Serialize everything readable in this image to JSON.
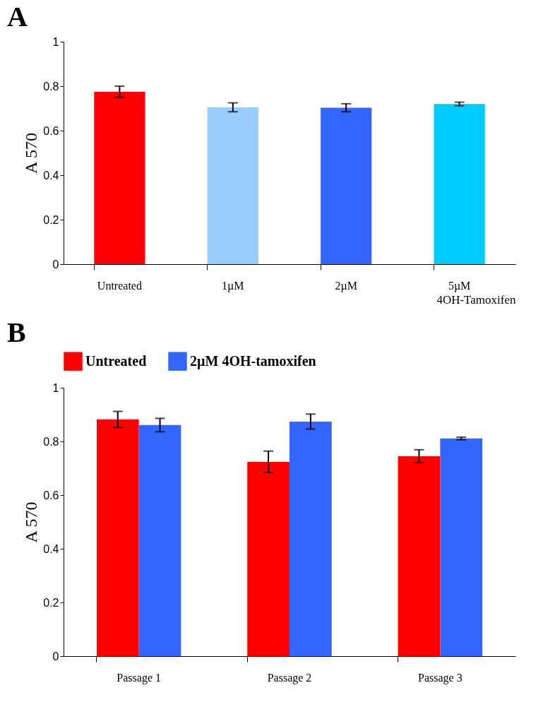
{
  "chart_data": [
    {
      "type": "bar",
      "title": "A",
      "ylabel": "A 570",
      "xlabel": "4OH-Tamoxifen",
      "categories": [
        "Untreated",
        "1µM",
        "2µM",
        "5µM"
      ],
      "values": [
        0.775,
        0.705,
        0.703,
        0.72
      ],
      "colors": [
        "#ff0000",
        "#99ccff",
        "#3366ff",
        "#00ccff"
      ],
      "errors": [
        0.025,
        0.02,
        0.018,
        0.008
      ],
      "ylim": [
        0,
        1
      ],
      "yticks": [
        0,
        0.2,
        0.4,
        0.6,
        0.8,
        1
      ],
      "grid": false
    },
    {
      "type": "bar",
      "title": "B",
      "ylabel": "A 570",
      "categories": [
        "Passage 1",
        "Passage 2",
        "Passage 3"
      ],
      "series": [
        {
          "name": "Untreated",
          "color": "#ff0000",
          "values": [
            0.882,
            0.724,
            0.745
          ],
          "errors": [
            0.03,
            0.04,
            0.024
          ]
        },
        {
          "name": "2µM 4OH-tamoxifen",
          "color": "#3366ff",
          "values": [
            0.861,
            0.874,
            0.811
          ],
          "errors": [
            0.025,
            0.028,
            0.005
          ]
        }
      ],
      "ylim": [
        0,
        1
      ],
      "yticks": [
        0,
        0.2,
        0.4,
        0.6,
        0.8,
        1
      ],
      "grid": false,
      "legend": "top left"
    }
  ]
}
